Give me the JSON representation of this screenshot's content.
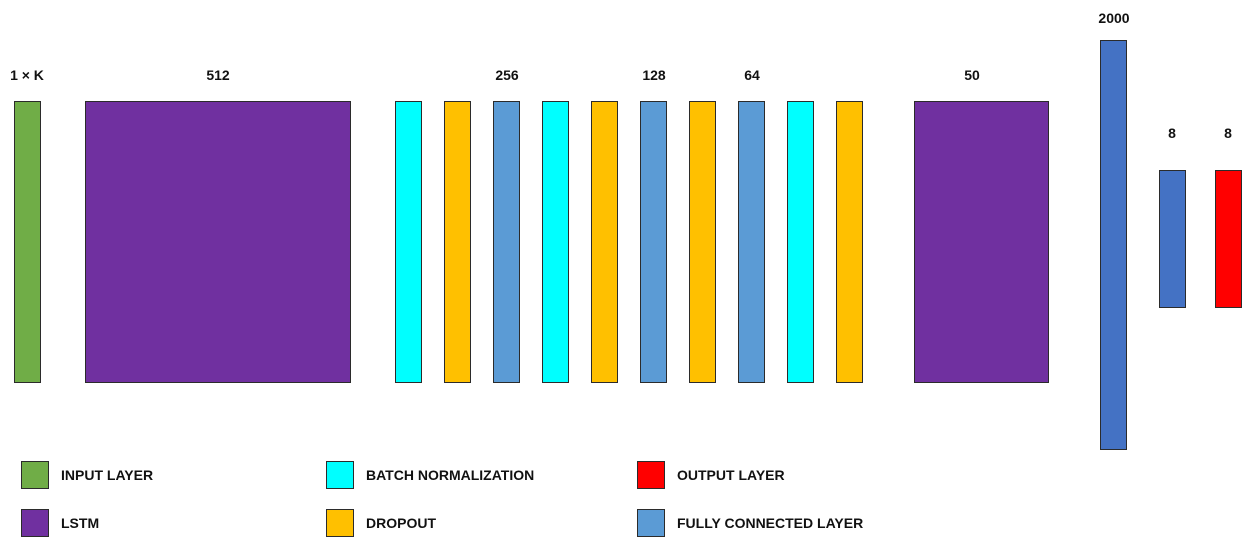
{
  "colors": {
    "input": "#70AD47",
    "lstm": "#7030A0",
    "batch_norm": "#00FFFF",
    "dropout": "#FFC000",
    "fully_connected_light": "#5B9BD5",
    "fully_connected_dark": "#4472C4",
    "output": "#FF0000"
  },
  "dimension_labels": {
    "input": "1 × K",
    "lstm1": "512",
    "fc256": "256",
    "fc128": "128",
    "fc64": "64",
    "lstm2": "50",
    "fc2000": "2000",
    "fc8": "8",
    "output8": "8"
  },
  "legend": {
    "input": "INPUT LAYER",
    "lstm": "LSTM",
    "batch_norm": "BATCH NORMALIZATION",
    "dropout": "DROPOUT",
    "output": "OUTPUT LAYER",
    "fully_connected": "FULLY CONNECTED LAYER"
  }
}
